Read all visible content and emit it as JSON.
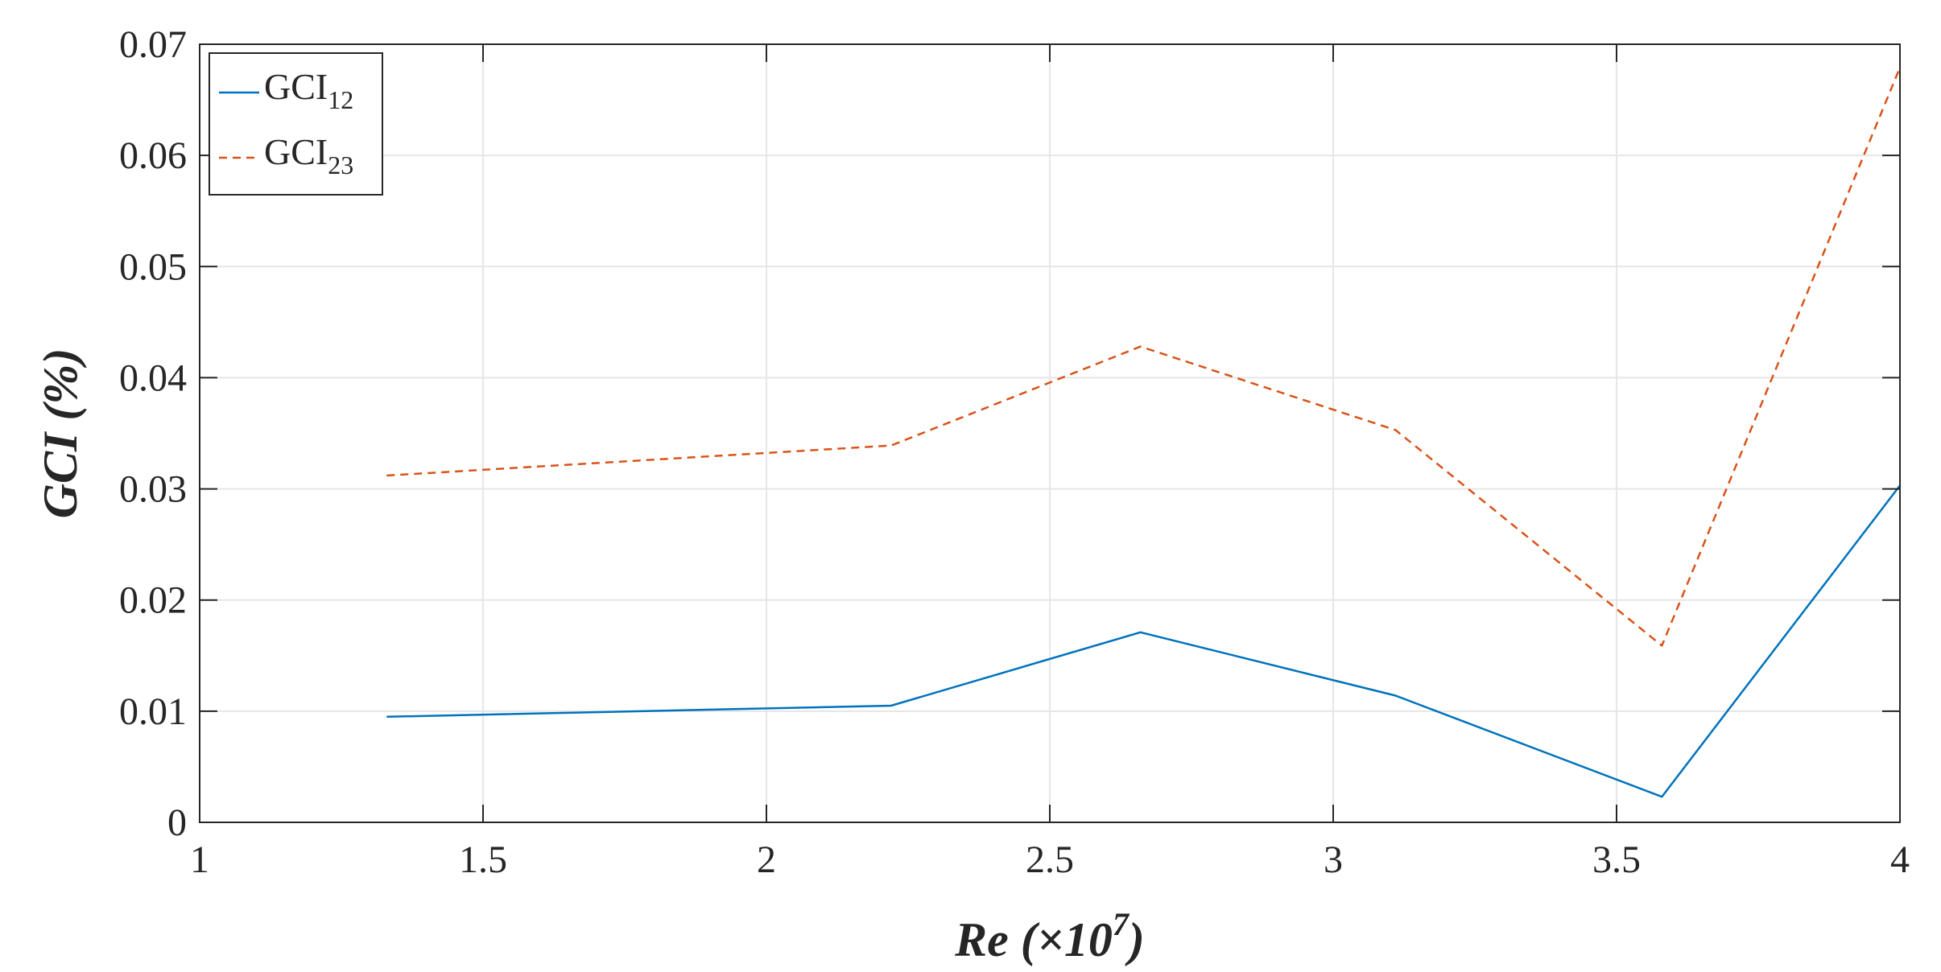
{
  "chart_data": {
    "type": "line",
    "xlabel": "Re (×10",
    "xlabel_exp": "7",
    "xlabel_close": ")",
    "ylabel": "GCI (%)",
    "xlim": [
      1,
      4
    ],
    "ylim": [
      0,
      0.07
    ],
    "xticks": [
      1,
      1.5,
      2,
      2.5,
      3,
      3.5,
      4
    ],
    "xtick_labels": [
      "1",
      "1.5",
      "2",
      "2.5",
      "3",
      "3.5",
      "4"
    ],
    "yticks": [
      0,
      0.01,
      0.02,
      0.03,
      0.04,
      0.05,
      0.06,
      0.07
    ],
    "ytick_labels": [
      "0",
      "0.01",
      "0.02",
      "0.03",
      "0.04",
      "0.05",
      "0.06",
      "0.07"
    ],
    "grid": true,
    "legend_position": "top-left",
    "series": [
      {
        "name": "GCI",
        "name_sub": "12",
        "color": "#0072BD",
        "style": "solid",
        "x": [
          1.33,
          2.22,
          2.66,
          3.11,
          3.58,
          4.0
        ],
        "y": [
          0.0095,
          0.0105,
          0.0171,
          0.0114,
          0.0023,
          0.0303
        ]
      },
      {
        "name": "GCI",
        "name_sub": "23",
        "color": "#D95319",
        "style": "dashed",
        "x": [
          1.33,
          2.22,
          2.66,
          3.11,
          3.58,
          4.0
        ],
        "y": [
          0.0312,
          0.0339,
          0.0428,
          0.0353,
          0.0159,
          0.0679
        ]
      }
    ]
  }
}
